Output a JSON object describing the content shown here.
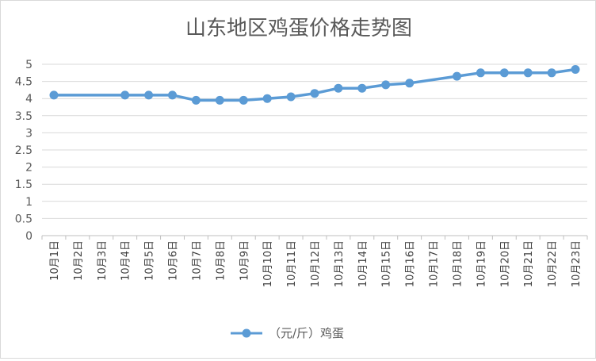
{
  "chart_data": {
    "type": "line",
    "title": "山东地区鸡蛋价格走势图",
    "xlabel": "",
    "ylabel": "",
    "categories": [
      "10月1日",
      "10月2日",
      "10月3日",
      "10月4日",
      "10月5日",
      "10月6日",
      "10月7日",
      "10月8日",
      "10月9日",
      "10月10日",
      "10月11日",
      "10月12日",
      "10月13日",
      "10月14日",
      "10月15日",
      "10月16日",
      "10月17日",
      "10月18日",
      "10月19日",
      "10月20日",
      "10月21日",
      "10月22日",
      "10月23日"
    ],
    "y_ticks": [
      "0",
      "0.5",
      "1",
      "1.5",
      "2",
      "2.5",
      "3",
      "3.5",
      "4",
      "4.5",
      "5"
    ],
    "ylim": [
      0,
      5
    ],
    "grid": true,
    "legend_position": "bottom",
    "series": [
      {
        "name": "（元/斤）鸡蛋",
        "color": "#5b9bd5",
        "values": [
          4.1,
          null,
          null,
          4.1,
          4.1,
          4.1,
          3.95,
          3.95,
          3.95,
          4.0,
          4.05,
          4.15,
          4.3,
          4.3,
          4.4,
          4.45,
          null,
          4.65,
          4.75,
          4.75,
          4.75,
          4.75,
          4.85
        ]
      }
    ]
  }
}
